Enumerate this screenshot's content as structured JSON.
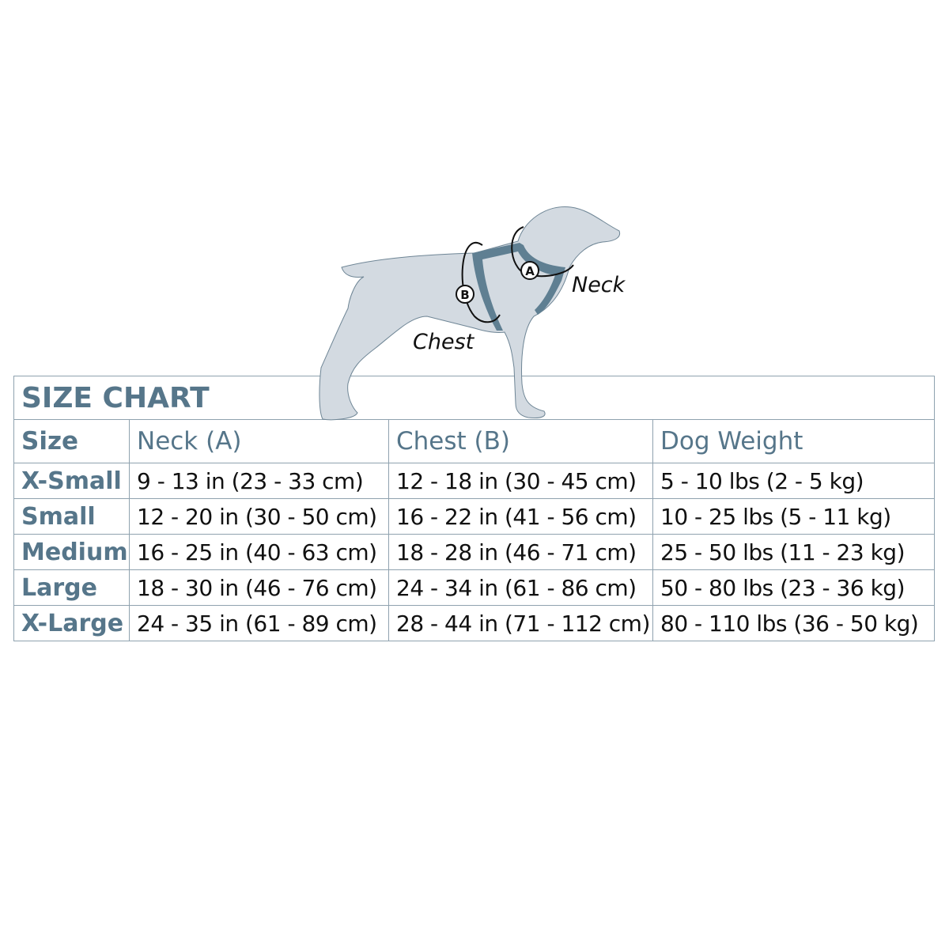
{
  "illustration": {
    "neck_label": "Neck",
    "chest_label": "Chest",
    "marker_a": "A",
    "marker_b": "B",
    "colors": {
      "dog_fill": "#d3dae1",
      "harness": "#5f7f92"
    }
  },
  "table": {
    "title": "SIZE CHART",
    "headers": [
      "Size",
      "Neck (A)",
      "Chest (B)",
      "Dog Weight"
    ],
    "rows": [
      [
        "X-Small",
        "9 - 13 in  (23 - 33 cm)",
        "12 - 18 in  (30 - 45 cm)",
        "5 - 10 lbs  (2 - 5 kg)"
      ],
      [
        "Small",
        "12 - 20 in  (30 - 50 cm)",
        "16 - 22 in  (41 - 56 cm)",
        "10 - 25 lbs  (5 - 11 kg)"
      ],
      [
        "Medium",
        "16 - 25 in  (40 - 63 cm)",
        "18 - 28 in  (46 - 71 cm)",
        "25 - 50 lbs  (11 - 23 kg)"
      ],
      [
        "Large",
        "18 - 30 in  (46 - 76 cm)",
        "24 - 34 in  (61 - 86 cm)",
        "50 - 80 lbs  (23 - 36 kg)"
      ],
      [
        "X-Large",
        "24 - 35 in  (61 - 89 cm)",
        "28 - 44 in  (71 - 112 cm)",
        "80 - 110 lbs  (36 - 50 kg)"
      ]
    ],
    "colors": {
      "heading": "#56768a",
      "border": "#8fa2af"
    }
  }
}
